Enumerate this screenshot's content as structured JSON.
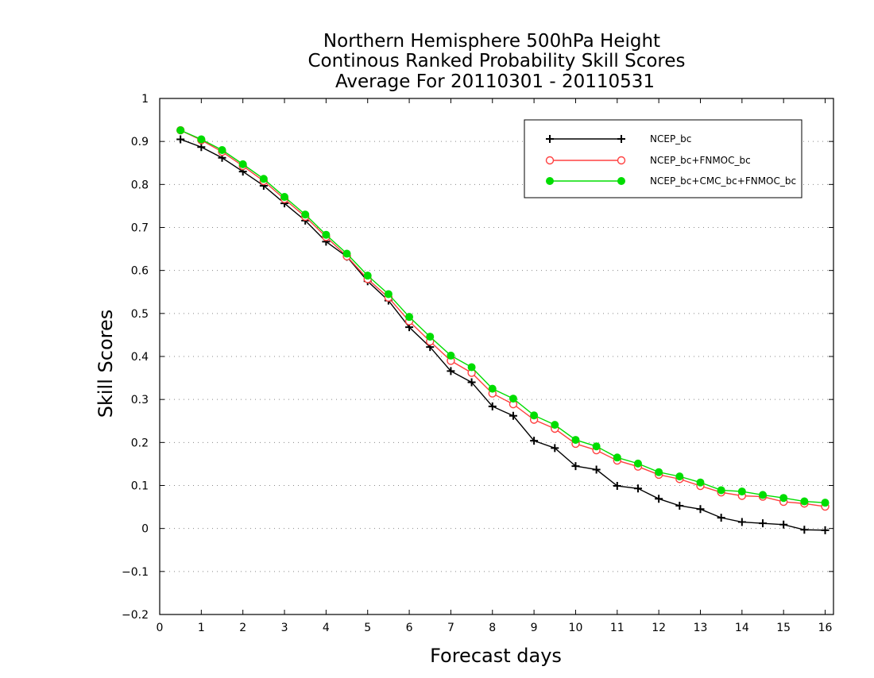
{
  "chart_data": {
    "type": "line",
    "title": [
      "Northern Hemisphere 500hPa Height",
      "Continous Ranked Probability Skill Scores",
      "Average For 20110301 - 20110531"
    ],
    "xlabel": "Forecast days",
    "ylabel": "Skill Scores",
    "xlim": [
      0,
      16.2
    ],
    "ylim": [
      -0.2,
      1
    ],
    "xticks": [
      0,
      1,
      2,
      3,
      4,
      5,
      6,
      7,
      8,
      9,
      10,
      11,
      12,
      13,
      14,
      15,
      16
    ],
    "yticks": [
      -0.2,
      -0.1,
      0,
      0.1,
      0.2,
      0.3,
      0.4,
      0.5,
      0.6,
      0.7,
      0.8,
      0.9,
      1
    ],
    "ytick_labels": [
      "−0.2",
      "−0.1",
      "0",
      "0.1",
      "0.2",
      "0.3",
      "0.4",
      "0.5",
      "0.6",
      "0.7",
      "0.8",
      "0.9",
      "1"
    ],
    "grid": "horizontal dotted",
    "legend_position": "top-right",
    "x": [
      0.5,
      1,
      1.5,
      2,
      2.5,
      3,
      3.5,
      4,
      4.5,
      5,
      5.5,
      6,
      6.5,
      7,
      7.5,
      8,
      8.5,
      9,
      9.5,
      10,
      10.5,
      11,
      11.5,
      12,
      12.5,
      13,
      13.5,
      14,
      14.5,
      15,
      15.5,
      16
    ],
    "series": [
      {
        "name": "NCEP_bc",
        "color": "#000000",
        "marker": "plus",
        "values": [
          0.905,
          0.887,
          0.862,
          0.83,
          0.797,
          0.756,
          0.716,
          0.667,
          0.632,
          0.575,
          0.53,
          0.468,
          0.422,
          0.366,
          0.34,
          0.284,
          0.262,
          0.204,
          0.187,
          0.145,
          0.137,
          0.099,
          0.093,
          0.069,
          0.053,
          0.045,
          0.025,
          0.015,
          0.012,
          0.009,
          -0.003,
          -0.004
        ]
      },
      {
        "name": "NCEP_bc+FNMOC_bc",
        "color": "#ff4040",
        "marker": "open-circle",
        "values": [
          0.926,
          0.903,
          0.876,
          0.843,
          0.808,
          0.766,
          0.725,
          0.678,
          0.633,
          0.58,
          0.537,
          0.482,
          0.435,
          0.39,
          0.362,
          0.314,
          0.289,
          0.253,
          0.232,
          0.197,
          0.182,
          0.158,
          0.144,
          0.125,
          0.115,
          0.099,
          0.084,
          0.076,
          0.074,
          0.062,
          0.058,
          0.051
        ]
      },
      {
        "name": "NCEP_bc+CMC_bc+FNMOC_bc",
        "color": "#00dd00",
        "marker": "filled-circle",
        "values": [
          0.926,
          0.905,
          0.88,
          0.847,
          0.813,
          0.771,
          0.73,
          0.683,
          0.639,
          0.588,
          0.545,
          0.492,
          0.446,
          0.402,
          0.375,
          0.325,
          0.302,
          0.263,
          0.241,
          0.206,
          0.191,
          0.165,
          0.151,
          0.131,
          0.121,
          0.107,
          0.089,
          0.086,
          0.078,
          0.071,
          0.063,
          0.06
        ]
      }
    ]
  }
}
